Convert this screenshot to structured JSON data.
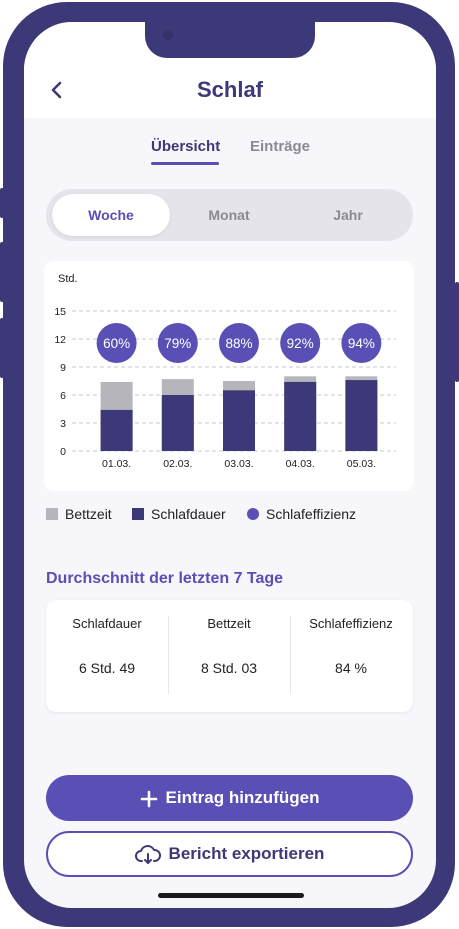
{
  "header": {
    "title": "Schlaf",
    "back_icon": "chevron-left-icon"
  },
  "tabs": [
    {
      "label": "Übersicht",
      "active": true
    },
    {
      "label": "Einträge",
      "active": false
    }
  ],
  "period_selector": {
    "options": [
      "Woche",
      "Monat",
      "Jahr"
    ],
    "selected": "Woche"
  },
  "chart_data": {
    "type": "bar",
    "ylabel": "Std.",
    "ylim": [
      0,
      15
    ],
    "yticks": [
      0,
      3,
      6,
      9,
      12,
      15
    ],
    "categories": [
      "01.03.",
      "02.03.",
      "03.03.",
      "04.03.",
      "05.03."
    ],
    "series": [
      {
        "name": "Bettzeit",
        "values": [
          7.4,
          7.7,
          7.5,
          8.0,
          8.0
        ],
        "color": "#b5b5bb"
      },
      {
        "name": "Schlafdauer",
        "values": [
          4.4,
          6.0,
          6.5,
          7.4,
          7.6
        ],
        "color": "#3d3878"
      },
      {
        "name": "Schlafeffizienz",
        "values": [
          60,
          79,
          88,
          92,
          94
        ],
        "unit": "%",
        "color": "#5a4fb5"
      }
    ],
    "data_labels": [
      "60%",
      "79%",
      "88%",
      "92%",
      "94%"
    ],
    "grid": true,
    "legend_position": "bottom"
  },
  "legend": {
    "items": [
      {
        "label": "Bettzeit",
        "color": "#b5b5bb",
        "shape": "square"
      },
      {
        "label": "Schlafdauer",
        "color": "#3d3878",
        "shape": "square"
      },
      {
        "label": "Schlafeffizienz",
        "color": "#5a4fb5",
        "shape": "circle"
      }
    ]
  },
  "averages": {
    "title": "Durchschnitt der letzten 7 Tage",
    "columns": [
      {
        "label": "Schlafdauer",
        "value": "6 Std. 49"
      },
      {
        "label": "Bettzeit",
        "value": "8 Std. 03"
      },
      {
        "label": "Schlafeffizienz",
        "value": "84 %"
      }
    ]
  },
  "actions": {
    "add_label": "Eintrag hinzufügen",
    "add_icon": "plus-icon",
    "export_label": "Bericht exportieren",
    "export_icon": "cloud-download-icon"
  },
  "colors": {
    "primary": "#5a4fb5",
    "dark": "#3d3878",
    "frame": "#3d3878",
    "bed_time": "#b5b5bb",
    "background": "#f6f6fb"
  }
}
